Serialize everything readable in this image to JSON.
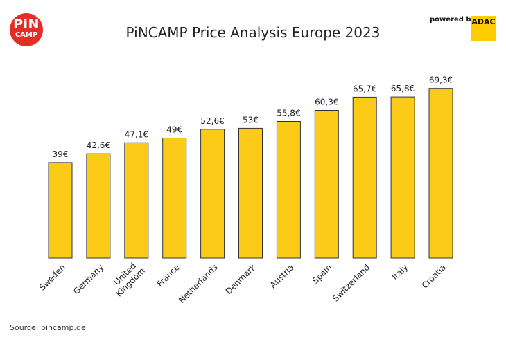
{
  "header": {
    "title": "PiNCAMP Price Analysis Europe 2023",
    "logo_top": "PiN",
    "logo_bottom": "CAMP",
    "powered_by": "powered by",
    "brand": "ADAC"
  },
  "footer": {
    "source": "Source: pincamp.de"
  },
  "colors": {
    "bar_fill": "#fccb17",
    "bar_stroke": "#333333",
    "logo": "#e52d27",
    "brand_box": "#ffcc00"
  },
  "chart_data": {
    "type": "bar",
    "title": "PiNCAMP Price Analysis Europe 2023",
    "xlabel": "",
    "ylabel": "",
    "categories": [
      "Sweden",
      "Germany",
      [
        "United",
        "Kingdom"
      ],
      "France",
      "Netherlands",
      "Denmark",
      "Austria",
      "Spain",
      "Switzerland",
      "Italy",
      "Croatia"
    ],
    "values": [
      39,
      42.6,
      47.1,
      49,
      52.6,
      53,
      55.8,
      60.3,
      65.7,
      65.8,
      69.3
    ],
    "data_labels": [
      "39€",
      "42,6€",
      "47,1€",
      "49€",
      "52,6€",
      "53€",
      "55,8€",
      "60,3€",
      "65,7€",
      "65,8€",
      "69,3€"
    ],
    "grid": false,
    "legend": "none"
  }
}
